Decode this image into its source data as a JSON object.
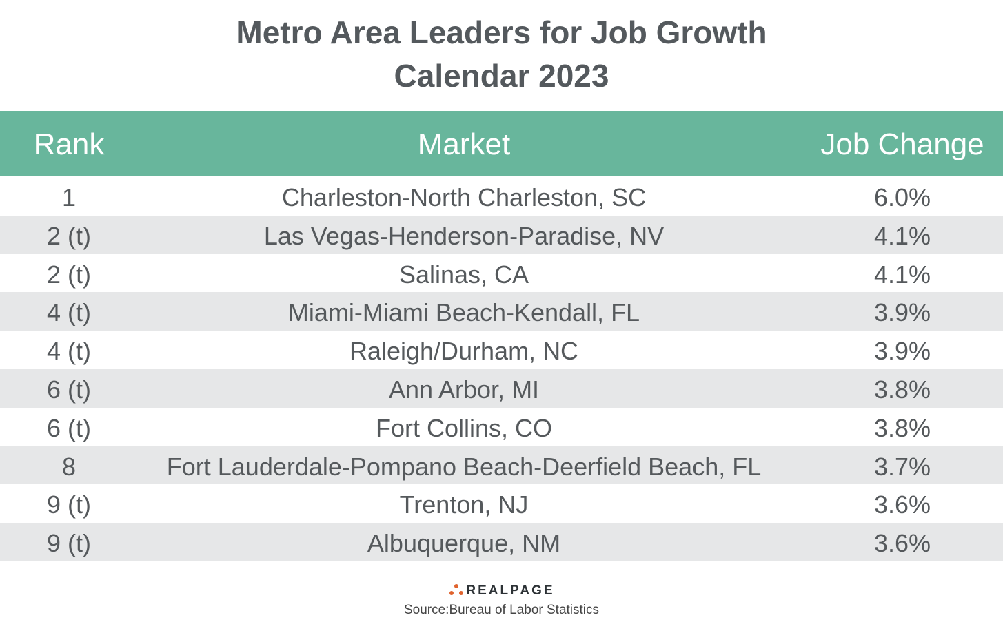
{
  "header": {
    "title_line1": "Metro Area Leaders for Job Growth",
    "title_line2": "Calendar 2023"
  },
  "table": {
    "columns": [
      "Rank",
      "Market",
      "Job Change"
    ],
    "rows": [
      [
        "1",
        "Charleston-North Charleston, SC",
        "6.0%"
      ],
      [
        "2 (t)",
        "Las Vegas-Henderson-Paradise, NV",
        "4.1%"
      ],
      [
        "2 (t)",
        "Salinas, CA",
        "4.1%"
      ],
      [
        "4 (t)",
        "Miami-Miami Beach-Kendall, FL",
        "3.9%"
      ],
      [
        "4 (t)",
        "Raleigh/Durham, NC",
        "3.9%"
      ],
      [
        "6 (t)",
        "Ann Arbor, MI",
        "3.8%"
      ],
      [
        "6 (t)",
        "Fort Collins, CO",
        "3.8%"
      ],
      [
        "8",
        "Fort Lauderdale-Pompano Beach-Deerfield Beach, FL",
        "3.7%"
      ],
      [
        "9 (t)",
        "Trenton, NJ",
        "3.6%"
      ],
      [
        "9 (t)",
        "Albuquerque, NM",
        "3.6%"
      ]
    ]
  },
  "footer": {
    "logo": "REALPAGE",
    "source": "Source:Bureau of Labor Statistics"
  }
}
